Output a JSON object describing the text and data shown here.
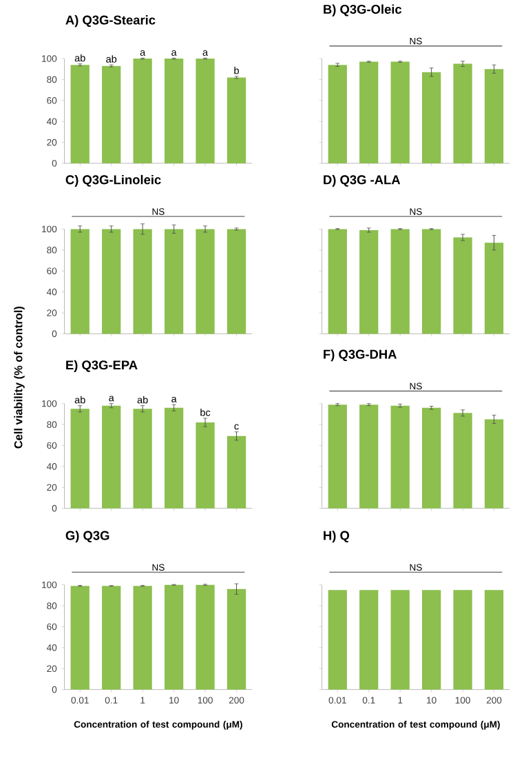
{
  "chart_data": [
    {
      "type": "bar",
      "title": "A) Q3G-Stearic",
      "categories": [
        "0.01",
        "0.1",
        "1",
        "10",
        "100",
        "200"
      ],
      "values": [
        94,
        93,
        100,
        100,
        100,
        82
      ],
      "errors": [
        1,
        1,
        0.5,
        0.5,
        0.5,
        1
      ],
      "color": "#8cbf4e",
      "ylim": [
        0,
        100
      ],
      "yticks": [
        0,
        20,
        40,
        60,
        80,
        100
      ],
      "tick_labels": "y",
      "annotations": [
        {
          "text": "ab",
          "x": "0.01",
          "y": 95
        },
        {
          "text": "ab",
          "x": "0.1",
          "y": 94
        },
        {
          "text": "a",
          "x": "1",
          "y": 100.5
        },
        {
          "text": "a",
          "x": "10",
          "y": 100.5
        },
        {
          "text": "a",
          "x": "100",
          "y": 100.5
        },
        {
          "text": "b",
          "x": "200",
          "y": 83
        }
      ]
    },
    {
      "type": "bar",
      "title": "B) Q3G-Oleic",
      "categories": [
        "0.01",
        "0.1",
        "1",
        "10",
        "100",
        "200"
      ],
      "values": [
        94,
        97,
        97,
        87,
        95,
        90
      ],
      "errors": [
        1.5,
        0.5,
        0.5,
        4,
        2.5,
        4
      ],
      "color": "#8cbf4e",
      "ylim": [
        0,
        100
      ],
      "yticks": [
        0,
        20,
        40,
        60,
        80,
        100
      ],
      "tick_labels": false,
      "annotations": [
        "NS"
      ]
    },
    {
      "type": "bar",
      "title": "C) Q3G-Linoleic",
      "categories": [
        "0.01",
        "0.1",
        "1",
        "10",
        "100",
        "200"
      ],
      "values": [
        100,
        100,
        100,
        100,
        100,
        100
      ],
      "errors": [
        3,
        3,
        5,
        4,
        3,
        1
      ],
      "color": "#8cbf4e",
      "ylim": [
        0,
        100
      ],
      "yticks": [
        0,
        20,
        40,
        60,
        80,
        100
      ],
      "tick_labels": "y",
      "annotations": [
        "NS"
      ]
    },
    {
      "type": "bar",
      "title": "D) Q3G -ALA",
      "categories": [
        "0.01",
        "0.1",
        "1",
        "10",
        "100",
        "200"
      ],
      "values": [
        100,
        99,
        100,
        100,
        92,
        87
      ],
      "errors": [
        0.5,
        2,
        0.5,
        0.5,
        3,
        7
      ],
      "color": "#8cbf4e",
      "ylim": [
        0,
        100
      ],
      "yticks": [
        0,
        20,
        40,
        60,
        80,
        100
      ],
      "tick_labels": false,
      "annotations": [
        "NS"
      ]
    },
    {
      "type": "bar",
      "title": "E) Q3G-EPA",
      "ylabel": "Cell viability (% of control)",
      "categories": [
        "0.01",
        "0.1",
        "1",
        "10",
        "100",
        "200"
      ],
      "values": [
        95,
        98,
        95,
        96,
        82,
        69
      ],
      "errors": [
        3,
        2,
        3,
        3,
        4,
        4
      ],
      "color": "#8cbf4e",
      "ylim": [
        0,
        100
      ],
      "yticks": [
        0,
        20,
        40,
        60,
        80,
        100
      ],
      "tick_labels": "y",
      "annotations": [
        {
          "text": "ab",
          "x": "0.01",
          "y": 98
        },
        {
          "text": "a",
          "x": "0.1",
          "y": 100
        },
        {
          "text": "ab",
          "x": "1",
          "y": 98
        },
        {
          "text": "a",
          "x": "10",
          "y": 99
        },
        {
          "text": "bc",
          "x": "100",
          "y": 86
        },
        {
          "text": "c",
          "x": "200",
          "y": 73
        }
      ]
    },
    {
      "type": "bar",
      "title": "F) Q3G-DHA",
      "categories": [
        "0.01",
        "0.1",
        "1",
        "10",
        "100",
        "200"
      ],
      "values": [
        99,
        99,
        98,
        96,
        91,
        85
      ],
      "errors": [
        1,
        1,
        1.5,
        1.5,
        3,
        4
      ],
      "color": "#8cbf4e",
      "ylim": [
        0,
        100
      ],
      "yticks": [
        0,
        20,
        40,
        60,
        80,
        100
      ],
      "tick_labels": false,
      "annotations": [
        "NS"
      ]
    },
    {
      "type": "bar",
      "title": "G) Q3G",
      "xlabel": "Concentration of test compound (μM)",
      "categories": [
        "0.01",
        "0.1",
        "1",
        "10",
        "100",
        "200"
      ],
      "values": [
        99,
        99,
        99,
        100,
        100,
        96
      ],
      "errors": [
        0.5,
        0.3,
        0.5,
        0.3,
        0.5,
        5
      ],
      "color": "#8cbf4e",
      "ylim": [
        0,
        100
      ],
      "yticks": [
        0,
        20,
        40,
        60,
        80,
        100
      ],
      "annotations": [
        "NS"
      ]
    },
    {
      "type": "bar",
      "title": "H) Q",
      "xlabel": "Concentration of test compound (μM)",
      "categories": [
        "0.01",
        "0.1",
        "1",
        "10",
        "100",
        "200"
      ],
      "values": [
        95,
        95,
        95,
        95,
        95,
        95
      ],
      "color": "#8cbf4e",
      "ylim": [
        0,
        100
      ],
      "yticks": [
        0,
        20,
        40,
        60,
        80,
        100
      ],
      "tick_labels": "x",
      "annotations": [
        "NS"
      ]
    }
  ]
}
